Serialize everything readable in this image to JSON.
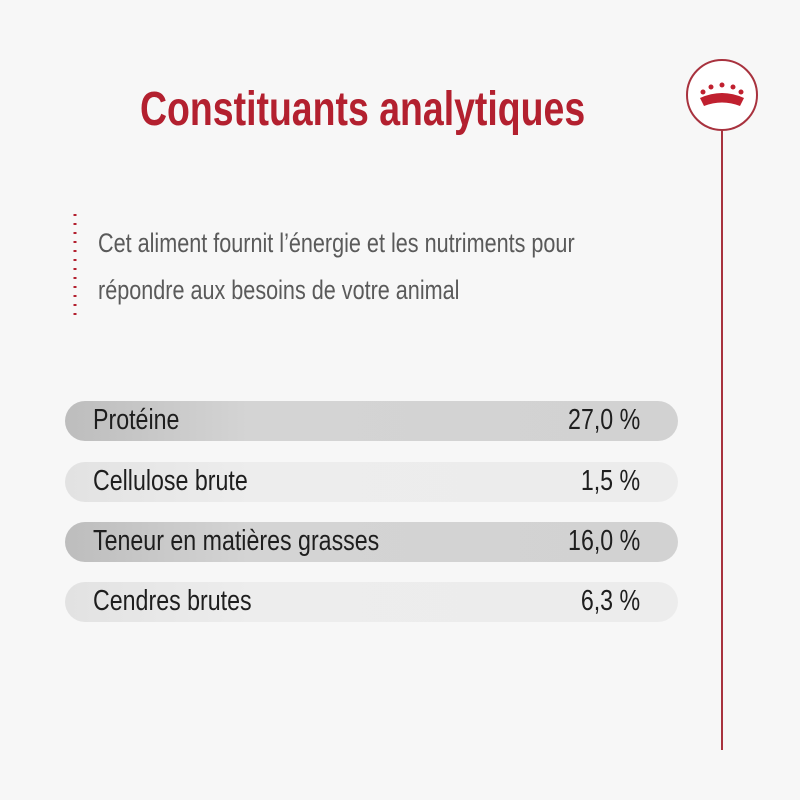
{
  "header": {
    "title": "Constituants analytiques"
  },
  "description": {
    "lines": [
      "Cet aliment fournit l’énergie et les nutriments pour",
      "répondre aux besoins de votre animal"
    ]
  },
  "table": {
    "rows": [
      [
        "Protéine",
        "27,0 %"
      ],
      [
        "Cellulose brute",
        "1,5 %"
      ],
      [
        "Teneur en matières grasses",
        "16,0 %"
      ],
      [
        "Cendres brutes",
        "6,3 %"
      ]
    ]
  }
}
